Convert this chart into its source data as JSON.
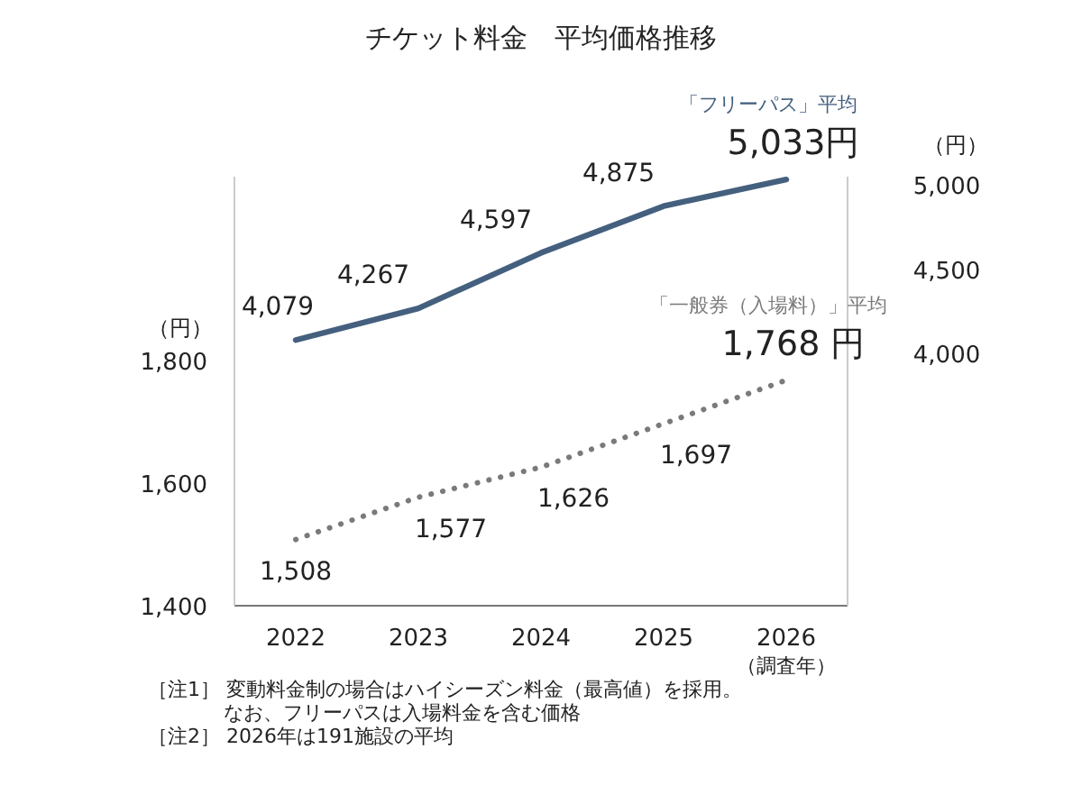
{
  "chart_data": {
    "type": "line",
    "title": "チケット料金　平均価格推移",
    "categories": [
      "2022",
      "2023",
      "2024",
      "2025",
      "2026\n（調査年）"
    ],
    "series": [
      {
        "name": "「フリーパス」平均",
        "color": "#44607e",
        "axis": "y2",
        "line_style": "solid",
        "values": [
          4079,
          4267,
          4597,
          4875,
          5033
        ],
        "value_labels": [
          "4,079",
          "4,267",
          "4,597",
          "4,875",
          "5,033円"
        ]
      },
      {
        "name": "「一般券（入場料）」平均",
        "color": "#7a7a7a",
        "line_style": "dotted",
        "values": [
          1508,
          1577,
          1626,
          1697,
          1768
        ],
        "value_labels": [
          "1,508",
          "1,577",
          "1,626",
          "1,697",
          "1,768 円"
        ]
      }
    ],
    "ylabel": "（円）",
    "y2label": "（円）",
    "ylim": [
      1400,
      2100
    ],
    "yticks": [
      {
        "value": 1400,
        "label": "1,400"
      },
      {
        "value": 1600,
        "label": "1,600"
      },
      {
        "value": 1800,
        "label": "1,800"
      }
    ],
    "y2lim": [
      2500,
      5050
    ],
    "y2ticks": [
      {
        "value": 4000,
        "label": "4,000"
      },
      {
        "value": 4500,
        "label": "4,500"
      },
      {
        "value": 5000,
        "label": "5,000"
      }
    ],
    "marker": "none",
    "grid": false,
    "legend": false,
    "annotations": [
      "［注1］ 変動料金制の場合はハイシーズン料金（最高値）を採用。",
      "なお、フリーパスは入場料金を含む価格",
      "［注2］ 2026年は191施設の平均"
    ]
  }
}
